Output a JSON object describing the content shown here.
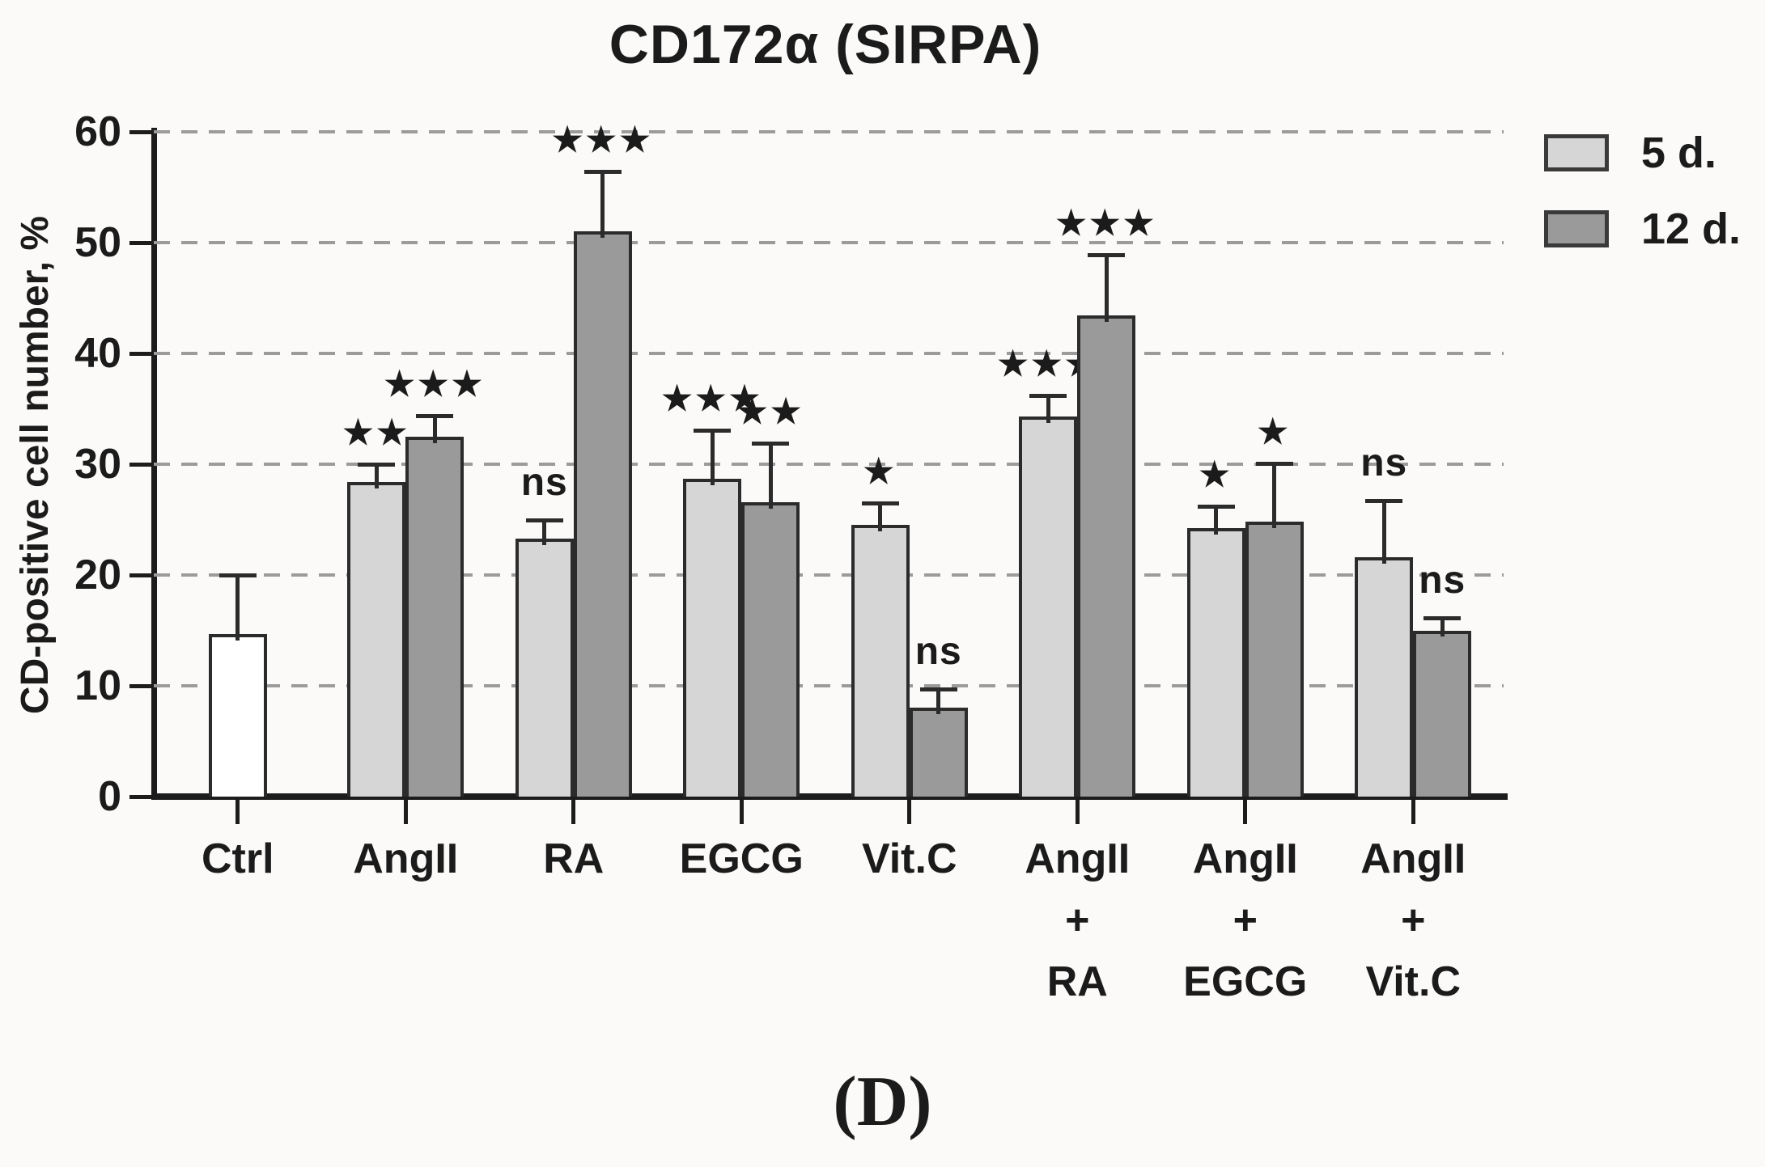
{
  "figure": {
    "caption": "(D)"
  },
  "chart_data": {
    "type": "bar",
    "title": "CD172α (SIRPA)",
    "ylabel": "CD-positive cell number, %",
    "xlabel": "",
    "ylim": [
      0,
      60
    ],
    "yticks": [
      0,
      10,
      20,
      30,
      40,
      50,
      60
    ],
    "grid": "horizontal-dashed",
    "legend_position": "top-right",
    "legend": [
      {
        "label": "5 d.",
        "fill": "#d6d6d6"
      },
      {
        "label": "12 d.",
        "fill": "#9a9a9a"
      }
    ],
    "colors": {
      "control_fill": "#ffffff",
      "series_5d_fill": "#d6d6d6",
      "series_12d_fill": "#9a9a9a",
      "bar_border": "#2b2b2b",
      "axis": "#1c1c1c",
      "grid": "#9b9b9b",
      "background": "#fbfaf8"
    },
    "groups": [
      {
        "label_lines": [
          "Ctrl"
        ],
        "bars": [
          {
            "series": "control",
            "fill": "#ffffff",
            "value": 14.7,
            "error": 5.3,
            "sig": ""
          }
        ]
      },
      {
        "label_lines": [
          "AngII"
        ],
        "bars": [
          {
            "series": "5 d.",
            "fill": "#d6d6d6",
            "value": 28.4,
            "error": 1.6,
            "sig": "**"
          },
          {
            "series": "12 d.",
            "fill": "#9a9a9a",
            "value": 32.5,
            "error": 1.9,
            "sig": "***"
          }
        ]
      },
      {
        "label_lines": [
          "RA"
        ],
        "bars": [
          {
            "series": "5 d.",
            "fill": "#d6d6d6",
            "value": 23.3,
            "error": 1.7,
            "sig": "ns"
          },
          {
            "series": "12 d.",
            "fill": "#9a9a9a",
            "value": 51.0,
            "error": 5.4,
            "sig": "***"
          }
        ]
      },
      {
        "label_lines": [
          "EGCG"
        ],
        "bars": [
          {
            "series": "5 d.",
            "fill": "#d6d6d6",
            "value": 28.7,
            "error": 4.4,
            "sig": "***"
          },
          {
            "series": "12 d.",
            "fill": "#9a9a9a",
            "value": 26.6,
            "error": 5.3,
            "sig": "**"
          }
        ]
      },
      {
        "label_lines": [
          "Vit.C"
        ],
        "bars": [
          {
            "series": "5 d.",
            "fill": "#d6d6d6",
            "value": 24.5,
            "error": 2.0,
            "sig": "*"
          },
          {
            "series": "12 d.",
            "fill": "#9a9a9a",
            "value": 8.0,
            "error": 1.7,
            "sig": "ns"
          }
        ]
      },
      {
        "label_lines": [
          "AngII",
          "+",
          "RA"
        ],
        "bars": [
          {
            "series": "5 d.",
            "fill": "#d6d6d6",
            "value": 34.3,
            "error": 1.9,
            "sig": "***"
          },
          {
            "series": "12 d.",
            "fill": "#9a9a9a",
            "value": 43.4,
            "error": 5.5,
            "sig": "***"
          }
        ]
      },
      {
        "label_lines": [
          "AngII",
          "+",
          "EGCG"
        ],
        "bars": [
          {
            "series": "5 d.",
            "fill": "#d6d6d6",
            "value": 24.2,
            "error": 2.0,
            "sig": "*"
          },
          {
            "series": "12 d.",
            "fill": "#9a9a9a",
            "value": 24.8,
            "error": 5.3,
            "sig": "*"
          }
        ]
      },
      {
        "label_lines": [
          "AngII",
          "+",
          "Vit.C"
        ],
        "bars": [
          {
            "series": "5 d.",
            "fill": "#d6d6d6",
            "value": 21.6,
            "error": 5.1,
            "sig": "ns"
          },
          {
            "series": "12 d.",
            "fill": "#9a9a9a",
            "value": 15.0,
            "error": 1.1,
            "sig": "ns"
          }
        ]
      }
    ]
  }
}
